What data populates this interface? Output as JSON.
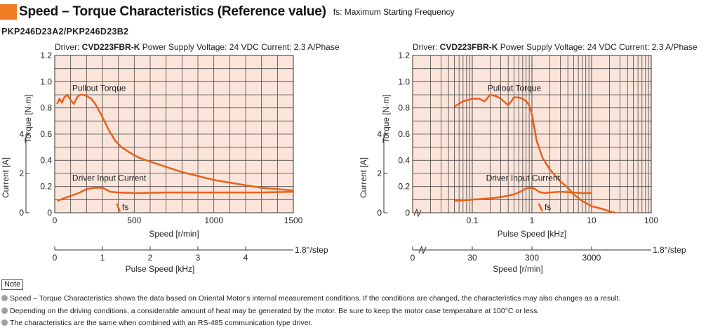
{
  "header": {
    "title": "Speed – Torque Characteristics (Reference value)",
    "subtitle": "fs: Maximum Starting Frequency",
    "accent_color": "#f07c24"
  },
  "model": "PKP246D23A2/PKP246D23B2",
  "chart_data": [
    {
      "type": "line",
      "title": "Driver: CVD223FBR-K  Power Supply Voltage: 24 VDC  Current: 2.3 A/Phase",
      "title_parts": {
        "driver_label": "Driver: ",
        "driver_model": "CVD223FBR-K",
        "rest": "  Power Supply Voltage: 24 VDC  Current: 2.3 A/Phase"
      },
      "xlabel": "Speed [r/min]",
      "xlim": [
        0,
        1500
      ],
      "xticks": [
        0,
        500,
        1000,
        1500
      ],
      "ylabel": "Torque [N·m]",
      "ylim": [
        0,
        1.2
      ],
      "yticks": [
        0,
        0.2,
        0.4,
        0.6,
        0.8,
        1.0,
        1.2
      ],
      "ytick_labels": [
        "0",
        "0.2",
        "0.4",
        "0.6",
        "0.8",
        "1.0",
        "1.2"
      ],
      "current_axis": {
        "label": "Current [A]",
        "ticks": [
          0,
          2,
          4
        ],
        "range": [
          0,
          8
        ]
      },
      "secondary_axis": {
        "label": "Pulse Speed [kHz]",
        "ticks": [
          0,
          1,
          2,
          3,
          4
        ],
        "step_label": "1.8°/step"
      },
      "series": [
        {
          "name": "Pullout Torque",
          "color": "#e8611a",
          "x": [
            15,
            30,
            45,
            60,
            80,
            100,
            120,
            140,
            160,
            180,
            200,
            230,
            260,
            300,
            340,
            380,
            420,
            470,
            530,
            600,
            700,
            800,
            900,
            1000,
            1100,
            1200,
            1300,
            1400,
            1500
          ],
          "y": [
            0.83,
            0.87,
            0.84,
            0.88,
            0.9,
            0.86,
            0.83,
            0.88,
            0.9,
            0.9,
            0.89,
            0.87,
            0.82,
            0.73,
            0.63,
            0.55,
            0.5,
            0.46,
            0.42,
            0.39,
            0.35,
            0.31,
            0.28,
            0.25,
            0.23,
            0.21,
            0.19,
            0.18,
            0.17
          ]
        },
        {
          "name": "Driver Input Current",
          "color": "#e8611a",
          "axis": "current",
          "x": [
            15,
            80,
            150,
            200,
            250,
            300,
            350,
            400,
            500,
            700,
            900,
            1100,
            1300,
            1500
          ],
          "y": [
            0.09,
            0.12,
            0.15,
            0.18,
            0.19,
            0.19,
            0.16,
            0.155,
            0.15,
            0.155,
            0.155,
            0.155,
            0.155,
            0.16
          ]
        }
      ],
      "fs": {
        "label": "fs",
        "x": [
          390,
          410
        ],
        "y": [
          0.07,
          0.01
        ]
      }
    },
    {
      "type": "line",
      "title": "Driver: CVD223FBR-K  Power Supply Voltage: 24 VDC  Current: 2.3 A/Phase",
      "title_parts": {
        "driver_label": "Driver: ",
        "driver_model": "CVD223FBR-K",
        "rest": "  Power Supply Voltage: 24 VDC  Current: 2.3 A/Phase"
      },
      "xscale": "log",
      "xlabel": "Pulse Speed [kHz]",
      "xlim": [
        0.01,
        100
      ],
      "xticks": [
        0.1,
        1,
        10,
        100
      ],
      "xtick_labels": [
        "0.1",
        "1",
        "10",
        "100"
      ],
      "ylabel": "Torque [N·m]",
      "ylim": [
        0,
        1.2
      ],
      "yticks": [
        0,
        0.2,
        0.4,
        0.6,
        0.8,
        1.0,
        1.2
      ],
      "ytick_labels": [
        "0",
        "0.2",
        "0.4",
        "0.6",
        "0.8",
        "1.0",
        "1.2"
      ],
      "current_axis": {
        "label": "Current [A]",
        "ticks": [
          0,
          2,
          4
        ],
        "range": [
          0,
          8
        ]
      },
      "secondary_axis": {
        "label": "Speed [r/min]",
        "ticks": [
          0,
          30,
          300,
          3000
        ],
        "step_label": "1.8°/step"
      },
      "series": [
        {
          "name": "Pullout Torque",
          "color": "#e8611a",
          "x": [
            0.05,
            0.07,
            0.1,
            0.13,
            0.16,
            0.2,
            0.25,
            0.3,
            0.4,
            0.45,
            0.5,
            0.6,
            0.7,
            0.8,
            0.9,
            1.0,
            1.2,
            1.5,
            2,
            3,
            4,
            5,
            7,
            10,
            15,
            20,
            25
          ],
          "y": [
            0.81,
            0.85,
            0.87,
            0.87,
            0.85,
            0.9,
            0.89,
            0.87,
            0.82,
            0.85,
            0.88,
            0.88,
            0.87,
            0.85,
            0.82,
            0.75,
            0.55,
            0.42,
            0.33,
            0.24,
            0.19,
            0.14,
            0.09,
            0.05,
            0.03,
            0.01,
            0.0
          ]
        },
        {
          "name": "Driver Input Current",
          "color": "#e8611a",
          "axis": "current",
          "x": [
            0.05,
            0.1,
            0.2,
            0.3,
            0.4,
            0.5,
            0.6,
            0.7,
            0.8,
            0.9,
            1.0,
            1.1,
            1.3,
            1.6,
            2,
            3,
            5,
            7,
            10
          ],
          "y": [
            0.09,
            0.1,
            0.11,
            0.12,
            0.13,
            0.14,
            0.155,
            0.17,
            0.185,
            0.19,
            0.19,
            0.185,
            0.16,
            0.15,
            0.155,
            0.16,
            0.155,
            0.15,
            0.15
          ]
        }
      ],
      "fs": {
        "label": "fs",
        "x": [
          1.3,
          1.5
        ],
        "y": [
          0.07,
          0.01
        ]
      }
    }
  ],
  "notes": {
    "tag": "Note",
    "items": [
      "Speed – Torque Characteristics shows the data based on Oriental Motor's internal measurement conditions. If the conditions are changed, the characteristics may also changes as a result.",
      "Depending on the driving conditions, a considerable amount of heat may be generated by the motor. Be sure to keep the motor case temperature at 100°C or less.",
      "The characteristics are the same when combined with an RS-485 communication type driver."
    ]
  }
}
